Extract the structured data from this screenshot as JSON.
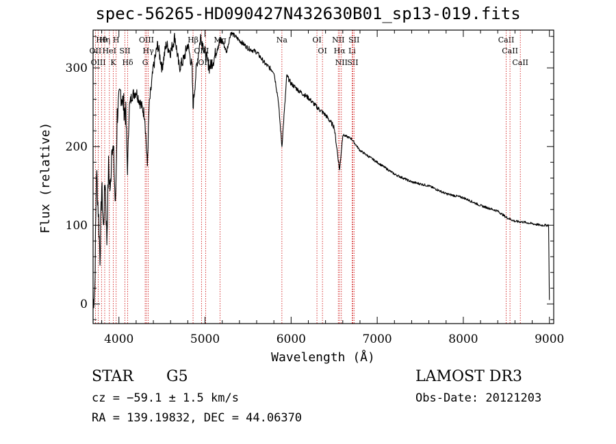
{
  "title": "spec-56265-HD090427N432630B01_sp13-019.fits",
  "info": {
    "object_type": "STAR",
    "subclass": "G5",
    "survey": "LAMOST DR3",
    "cz_line": "cz = −59.1 ± 1.5 km/s",
    "obs_date_line": "Obs-Date: 20121203",
    "radec_line": "RA = 139.19832, DEC =  44.06370"
  },
  "colors": {
    "spectrum": "#000000",
    "line_markers": "#cc0000",
    "background": "#ffffff"
  },
  "chart_data": {
    "type": "line",
    "xlabel": "Wavelength (Å)",
    "ylabel": "Flux (relative)",
    "xlim": [
      3700,
      9050
    ],
    "ylim": [
      -25,
      348
    ],
    "xticks": [
      4000,
      5000,
      6000,
      7000,
      8000,
      9000
    ],
    "yticks": [
      0,
      100,
      200,
      300
    ],
    "grid": false,
    "series": [
      {
        "x": [
          3700,
          3720,
          3740,
          3760,
          3780,
          3800,
          3820,
          3840,
          3860,
          3880,
          3900,
          3920,
          3940,
          3960,
          3980,
          4000,
          4020,
          4040,
          4060,
          4080,
          4100,
          4120,
          4150,
          4200,
          4250,
          4300,
          4330,
          4350,
          4400,
          4450,
          4500,
          4550,
          4600,
          4650,
          4700,
          4750,
          4800,
          4850,
          4861,
          4900,
          4950,
          5000,
          5050,
          5100,
          5150,
          5200,
          5250,
          5300,
          5400,
          5500,
          5600,
          5700,
          5800,
          5850,
          5893,
          5950,
          6000,
          6100,
          6200,
          6300,
          6400,
          6500,
          6563,
          6600,
          6700,
          6800,
          7000,
          7200,
          7400,
          7600,
          7800,
          8000,
          8200,
          8400,
          8500,
          8600,
          8700,
          8800,
          8900,
          8990,
          9000
        ],
        "y": [
          0,
          20,
          170,
          120,
          60,
          150,
          95,
          160,
          80,
          175,
          140,
          210,
          185,
          120,
          240,
          255,
          270,
          260,
          250,
          240,
          170,
          250,
          265,
          270,
          255,
          240,
          175,
          250,
          300,
          330,
          300,
          330,
          320,
          340,
          300,
          310,
          330,
          300,
          250,
          300,
          340,
          320,
          300,
          310,
          330,
          335,
          320,
          345,
          335,
          325,
          320,
          305,
          295,
          260,
          200,
          290,
          280,
          270,
          262,
          250,
          240,
          225,
          170,
          215,
          210,
          195,
          180,
          165,
          155,
          150,
          140,
          135,
          125,
          118,
          110,
          105,
          104,
          102,
          100,
          100,
          5
        ]
      }
    ],
    "line_markers": [
      {
        "label": "Hθ",
        "x": 3798
      },
      {
        "label": "OII",
        "x": 3727
      },
      {
        "label": "OIII",
        "x": 3760
      },
      {
        "label": "Hη",
        "x": 3835
      },
      {
        "label": "HeI",
        "x": 3889
      },
      {
        "label": "K",
        "x": 3934
      },
      {
        "label": "H",
        "x": 3968
      },
      {
        "label": "SII",
        "x": 4070
      },
      {
        "label": "Hδ",
        "x": 4102
      },
      {
        "label": "OIII",
        "x": 4320
      },
      {
        "label": "Hγ",
        "x": 4341
      },
      {
        "label": "G",
        "x": 4305
      },
      {
        "label": "Hβ",
        "x": 4861
      },
      {
        "label": "OIII",
        "x": 4959
      },
      {
        "label": "OIII",
        "x": 5007
      },
      {
        "label": "Mg",
        "x": 5175
      },
      {
        "label": "Na",
        "x": 5893
      },
      {
        "label": "OI",
        "x": 6300
      },
      {
        "label": "OI",
        "x": 6364
      },
      {
        "label": "NII",
        "x": 6548
      },
      {
        "label": "Hα",
        "x": 6563
      },
      {
        "label": "NII",
        "x": 6584
      },
      {
        "label": "Li",
        "x": 6708
      },
      {
        "label": "SII",
        "x": 6717
      },
      {
        "label": "SII",
        "x": 6731
      },
      {
        "label": "CaII",
        "x": 8498
      },
      {
        "label": "CaII",
        "x": 8542
      },
      {
        "label": "CaII",
        "x": 8662
      }
    ]
  }
}
